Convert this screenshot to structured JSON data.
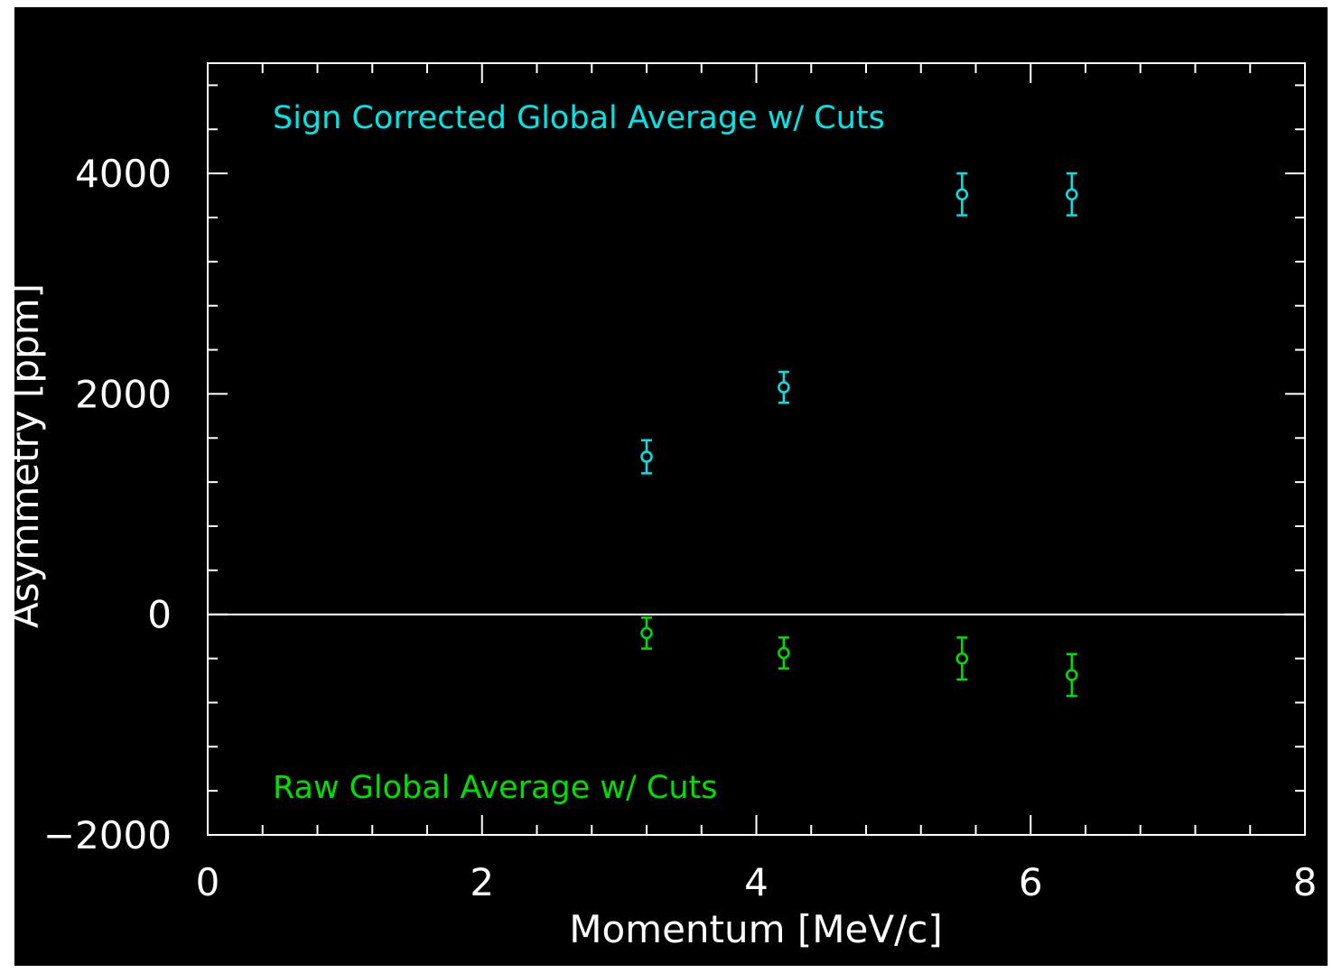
{
  "chart_data": {
    "type": "scatter",
    "title": "",
    "xlabel": "Momentum [MeV/c]",
    "ylabel": "Asymmetry [ppm]",
    "xlim": [
      0,
      8
    ],
    "ylim": [
      -2000,
      5000
    ],
    "x_ticks": [
      "0",
      "2",
      "4",
      "6",
      "8"
    ],
    "y_ticks": [
      "−2000",
      "0",
      "2000",
      "4000"
    ],
    "zero_line": true,
    "grid": false,
    "series": [
      {
        "name": "Sign Corrected Global Average w/ Cuts",
        "color": "#00e5e5",
        "points": [
          {
            "x": 3.2,
            "y": 1430,
            "err": 150
          },
          {
            "x": 4.2,
            "y": 2060,
            "err": 140
          },
          {
            "x": 5.5,
            "y": 3810,
            "err": 190
          },
          {
            "x": 6.3,
            "y": 3810,
            "err": 190
          }
        ]
      },
      {
        "name": "Raw Global Average w/ Cuts",
        "color": "#00e000",
        "points": [
          {
            "x": 3.2,
            "y": -170,
            "err": 140
          },
          {
            "x": 4.2,
            "y": -350,
            "err": 140
          },
          {
            "x": 5.5,
            "y": -400,
            "err": 190
          },
          {
            "x": 6.3,
            "y": -550,
            "err": 190
          }
        ]
      }
    ]
  }
}
